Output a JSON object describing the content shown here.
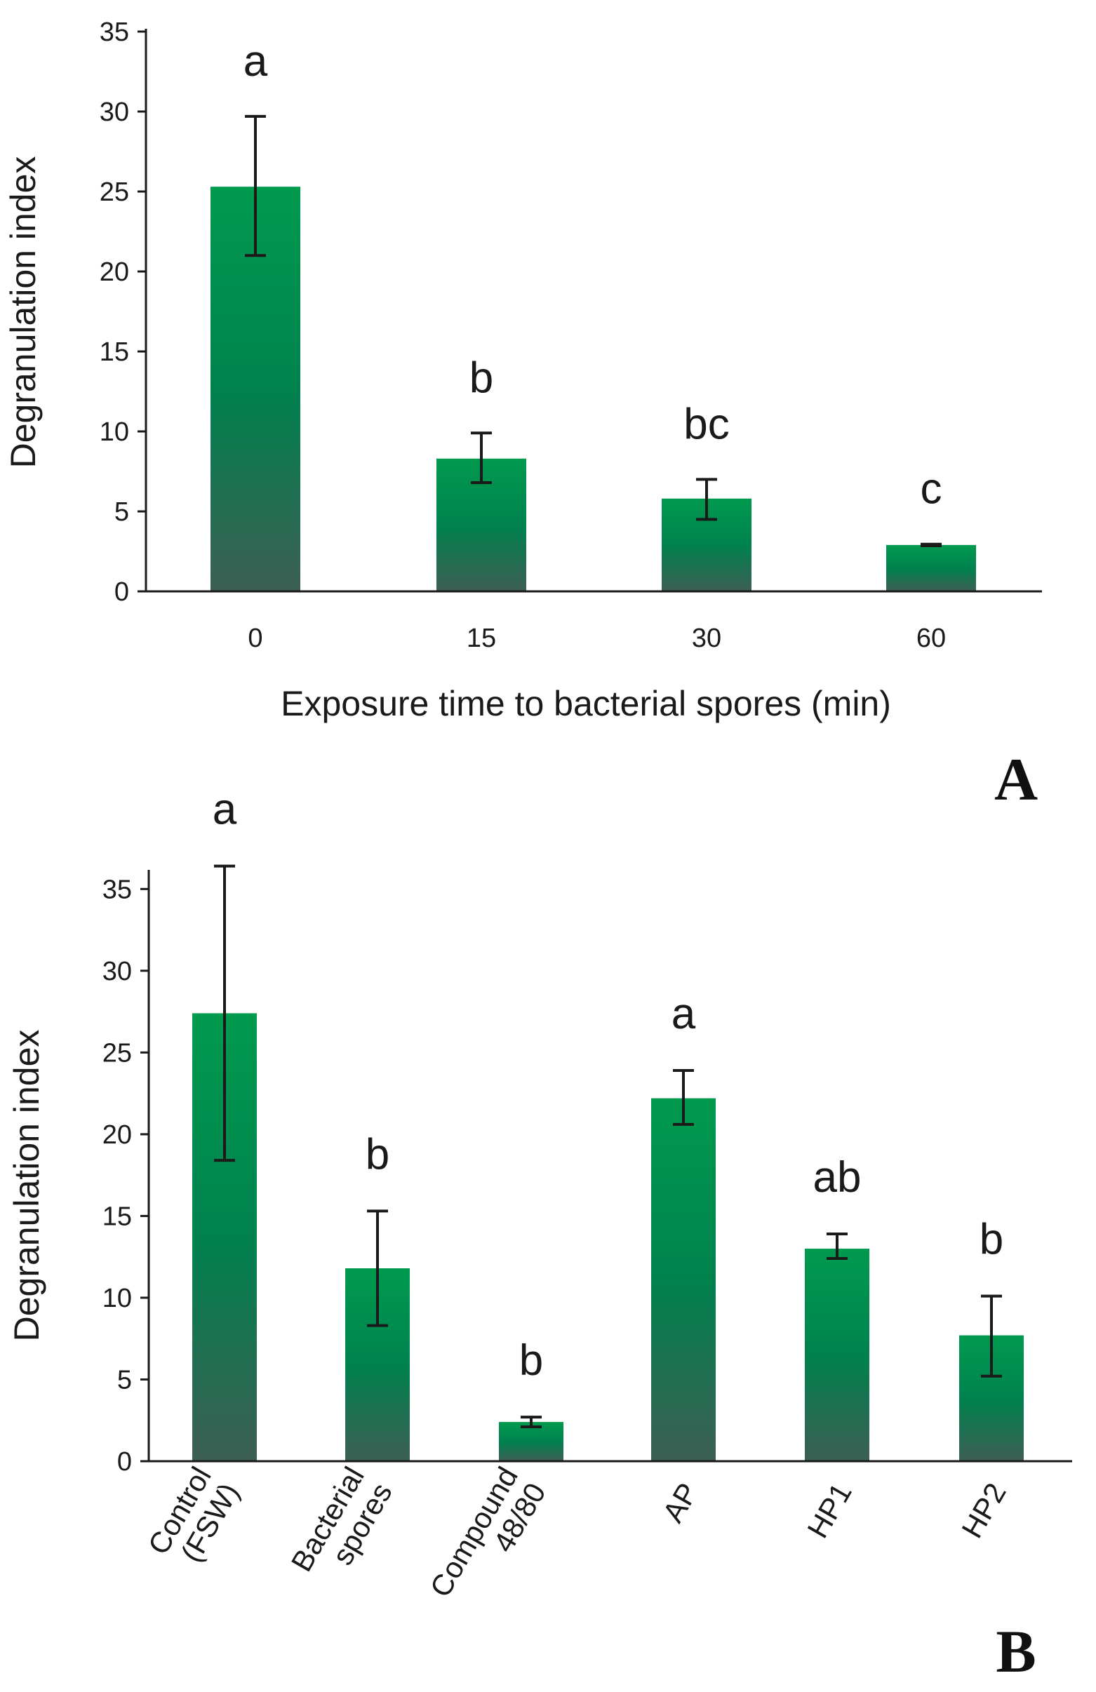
{
  "chart_data": [
    {
      "panel": "A",
      "type": "bar",
      "title": "",
      "xlabel": "Exposure time to bacterial spores (min)",
      "ylabel": "Degranulation index",
      "ylim": [
        0,
        35
      ],
      "yticks": [
        0,
        5,
        10,
        15,
        20,
        25,
        30,
        35
      ],
      "grid": false,
      "categories": [
        "0",
        "15",
        "30",
        "60"
      ],
      "values": [
        25.3,
        8.3,
        5.8,
        2.9
      ],
      "error_low": [
        21.0,
        6.8,
        4.5,
        2.85
      ],
      "error_high": [
        29.7,
        9.9,
        7.0,
        2.95
      ],
      "significance": [
        "a",
        "b",
        "bc",
        "c"
      ],
      "bar_color_top": "#009a4e",
      "bar_color_bottom": "#3d5e54"
    },
    {
      "panel": "B",
      "type": "bar",
      "title": "",
      "xlabel": "",
      "ylabel": "Degranulation index",
      "ylim": [
        0,
        36
      ],
      "yticks": [
        0,
        5,
        10,
        15,
        20,
        25,
        30,
        35
      ],
      "grid": false,
      "categories": [
        [
          "Control",
          "(FSW)"
        ],
        [
          "Bacterial",
          "spores"
        ],
        [
          "Compound",
          "48/80"
        ],
        [
          "AP"
        ],
        [
          "HP1"
        ],
        [
          "HP2"
        ]
      ],
      "values": [
        27.4,
        11.8,
        2.4,
        22.2,
        13.0,
        7.7
      ],
      "error_low": [
        18.4,
        8.3,
        2.1,
        20.6,
        12.4,
        5.2
      ],
      "error_high": [
        36.4,
        15.3,
        2.7,
        23.9,
        13.9,
        10.1
      ],
      "significance": [
        "a",
        "b",
        "b",
        "a",
        "ab",
        "b"
      ],
      "bar_color_top": "#009a4e",
      "bar_color_bottom": "#3d5e54"
    }
  ]
}
